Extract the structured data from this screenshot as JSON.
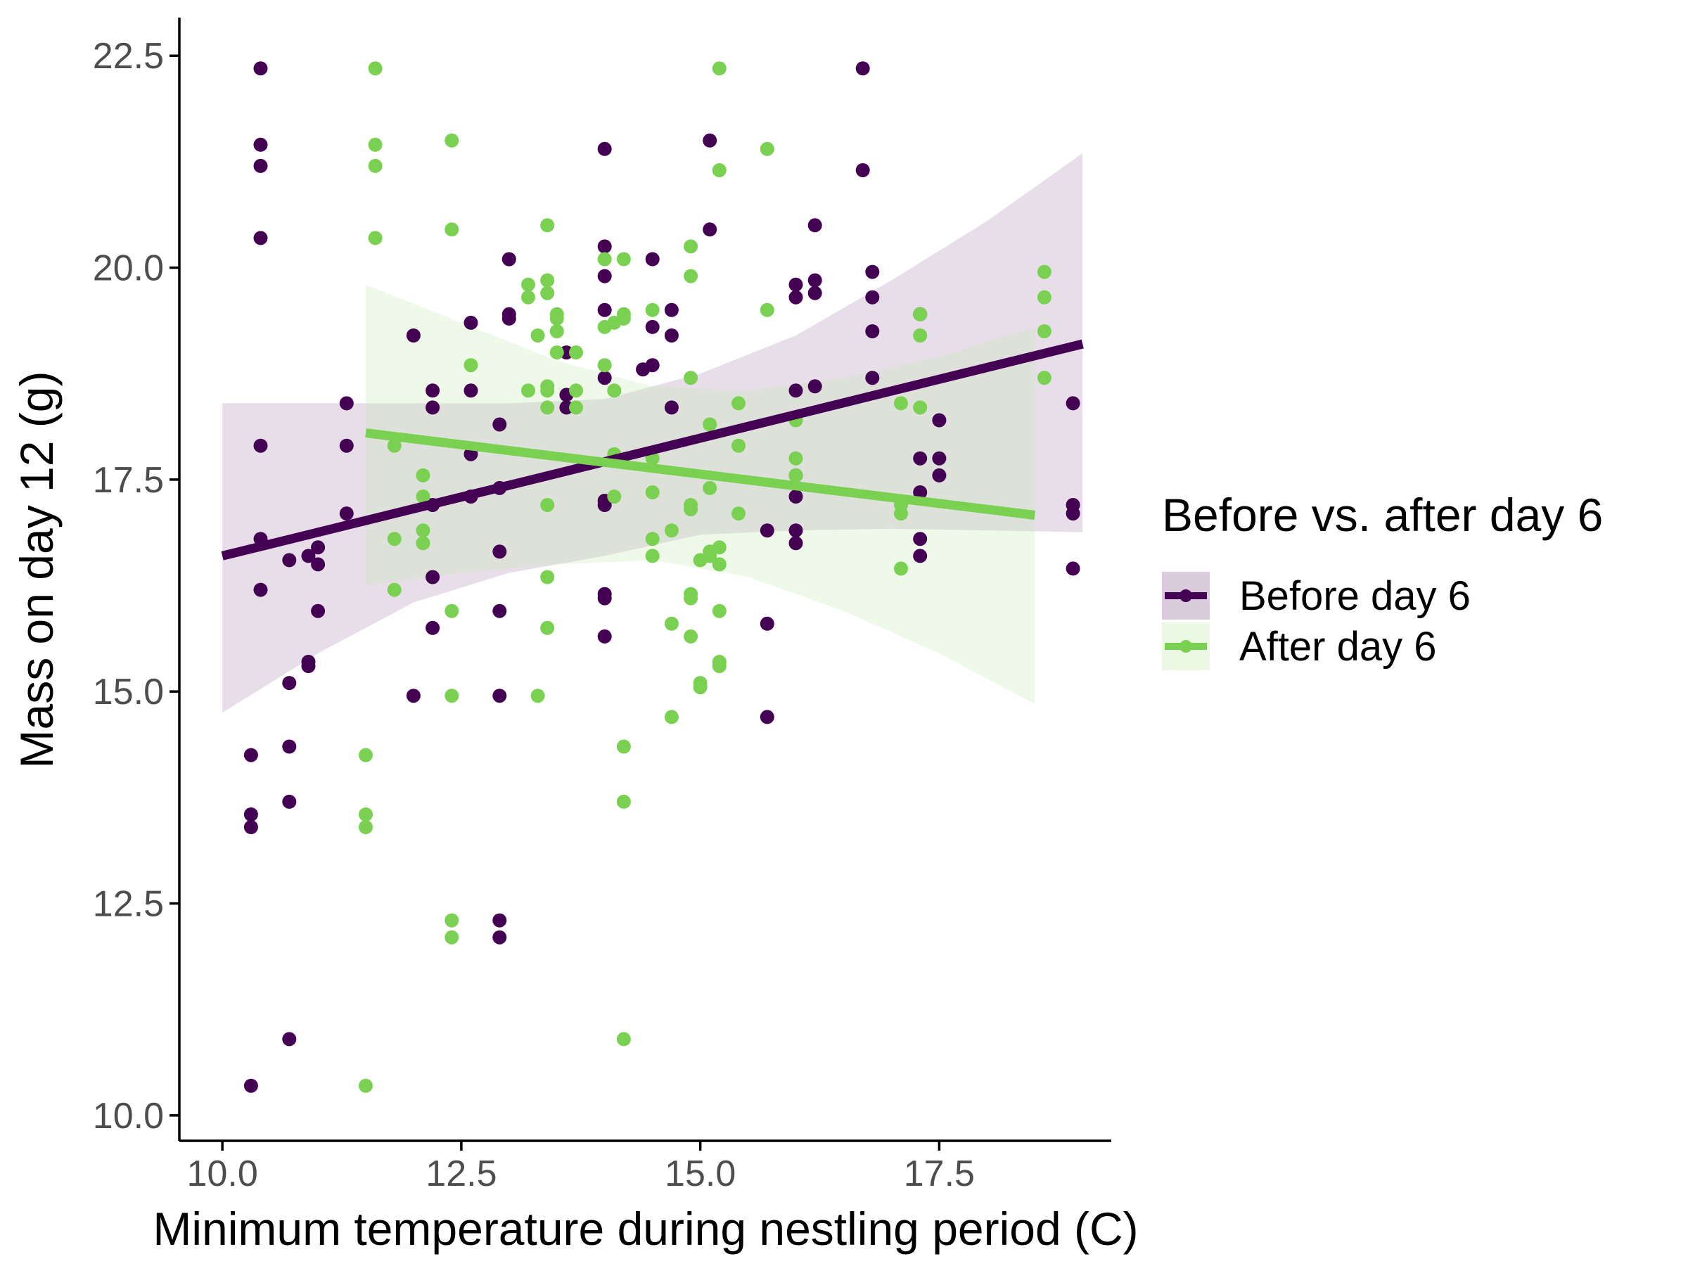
{
  "chart_data": {
    "type": "scatter",
    "title": "",
    "xlabel": "Minimum temperature during nestling period (C)",
    "ylabel": "Mass on day 12 (g)",
    "xlim": [
      9.55,
      19.3
    ],
    "ylim": [
      9.7,
      22.95
    ],
    "x_ticks": [
      10.0,
      12.5,
      15.0,
      17.5
    ],
    "x_tick_labels": [
      "10.0",
      "12.5",
      "15.0",
      "17.5"
    ],
    "y_ticks": [
      10.0,
      12.5,
      15.0,
      17.5,
      20.0,
      22.5
    ],
    "y_tick_labels": [
      "10.0",
      "12.5",
      "15.0",
      "17.5",
      "20.0",
      "22.5"
    ],
    "grid": false,
    "legend": {
      "title": "Before vs. after day 6",
      "placement": "right"
    },
    "series": [
      {
        "name": "Before day 6",
        "color": "#440154",
        "band_color": "#440154",
        "fit": {
          "x": [
            10.0,
            19.0
          ],
          "y": [
            16.6,
            19.1
          ]
        },
        "band": {
          "x": [
            10.0,
            11.0,
            12.0,
            13.0,
            14.0,
            15.0,
            16.0,
            17.0,
            18.0,
            19.0
          ],
          "lower": [
            14.75,
            15.45,
            16.05,
            16.4,
            16.6,
            16.85,
            16.9,
            16.92,
            16.9,
            16.88
          ],
          "upper": [
            18.4,
            18.4,
            18.4,
            18.4,
            18.45,
            18.75,
            19.2,
            19.85,
            20.55,
            21.35
          ]
        },
        "points": [
          [
            10.3,
            14.25
          ],
          [
            10.3,
            13.55
          ],
          [
            10.3,
            13.4
          ],
          [
            10.3,
            10.35
          ],
          [
            10.4,
            22.35
          ],
          [
            10.4,
            21.45
          ],
          [
            10.4,
            21.2
          ],
          [
            10.4,
            20.35
          ],
          [
            10.4,
            17.9
          ],
          [
            10.4,
            16.8
          ],
          [
            10.4,
            16.2
          ],
          [
            10.7,
            16.55
          ],
          [
            10.7,
            15.1
          ],
          [
            10.7,
            14.35
          ],
          [
            10.7,
            13.7
          ],
          [
            10.7,
            10.9
          ],
          [
            10.9,
            16.6
          ],
          [
            10.9,
            15.35
          ],
          [
            10.9,
            15.3
          ],
          [
            11.0,
            16.7
          ],
          [
            11.0,
            16.5
          ],
          [
            11.0,
            15.95
          ],
          [
            11.3,
            18.4
          ],
          [
            11.3,
            17.9
          ],
          [
            11.3,
            17.1
          ],
          [
            12.0,
            19.2
          ],
          [
            12.0,
            14.95
          ],
          [
            12.2,
            18.55
          ],
          [
            12.2,
            18.35
          ],
          [
            12.2,
            17.2
          ],
          [
            12.2,
            16.35
          ],
          [
            12.2,
            15.75
          ],
          [
            12.6,
            19.35
          ],
          [
            12.6,
            18.55
          ],
          [
            12.6,
            17.8
          ],
          [
            12.6,
            17.3
          ],
          [
            12.9,
            18.15
          ],
          [
            12.9,
            17.4
          ],
          [
            12.9,
            16.65
          ],
          [
            12.9,
            15.95
          ],
          [
            12.9,
            14.95
          ],
          [
            12.9,
            12.3
          ],
          [
            12.9,
            12.1
          ],
          [
            13.0,
            20.1
          ],
          [
            13.0,
            19.45
          ],
          [
            13.0,
            19.4
          ],
          [
            13.6,
            19.0
          ],
          [
            13.6,
            18.5
          ],
          [
            13.6,
            18.35
          ],
          [
            14.0,
            21.4
          ],
          [
            14.0,
            20.25
          ],
          [
            14.0,
            19.9
          ],
          [
            14.0,
            19.5
          ],
          [
            14.0,
            18.7
          ],
          [
            14.0,
            17.25
          ],
          [
            14.0,
            17.2
          ],
          [
            14.0,
            16.15
          ],
          [
            14.0,
            16.1
          ],
          [
            14.0,
            15.65
          ],
          [
            14.4,
            18.8
          ],
          [
            14.5,
            20.1
          ],
          [
            14.5,
            19.3
          ],
          [
            14.5,
            18.85
          ],
          [
            14.7,
            19.5
          ],
          [
            14.7,
            19.2
          ],
          [
            14.7,
            18.35
          ],
          [
            15.1,
            21.5
          ],
          [
            15.1,
            20.45
          ],
          [
            15.7,
            16.9
          ],
          [
            15.7,
            15.8
          ],
          [
            15.7,
            14.7
          ],
          [
            16.0,
            19.8
          ],
          [
            16.0,
            19.65
          ],
          [
            16.0,
            18.55
          ],
          [
            16.0,
            17.55
          ],
          [
            16.0,
            17.3
          ],
          [
            16.0,
            16.9
          ],
          [
            16.0,
            16.75
          ],
          [
            16.2,
            20.5
          ],
          [
            16.2,
            19.85
          ],
          [
            16.2,
            19.7
          ],
          [
            16.2,
            18.6
          ],
          [
            16.7,
            22.35
          ],
          [
            16.7,
            21.15
          ],
          [
            16.8,
            19.95
          ],
          [
            16.8,
            19.65
          ],
          [
            16.8,
            19.25
          ],
          [
            16.8,
            18.7
          ],
          [
            17.3,
            19.45
          ],
          [
            17.3,
            17.75
          ],
          [
            17.3,
            17.35
          ],
          [
            17.3,
            16.8
          ],
          [
            17.3,
            16.6
          ],
          [
            17.5,
            18.2
          ],
          [
            17.5,
            17.75
          ],
          [
            17.5,
            17.55
          ],
          [
            18.9,
            18.4
          ],
          [
            18.9,
            17.2
          ],
          [
            18.9,
            17.1
          ],
          [
            18.9,
            16.45
          ]
        ]
      },
      {
        "name": "After day 6",
        "color": "#7AD151",
        "band_color": "#c6eab0",
        "fit": {
          "x": [
            11.5,
            18.5
          ],
          "y": [
            18.05,
            17.08
          ]
        },
        "band": {
          "x": [
            11.5,
            12.5,
            13.5,
            14.5,
            15.5,
            16.5,
            17.5,
            18.5
          ],
          "lower": [
            16.25,
            16.4,
            16.5,
            16.55,
            16.35,
            15.95,
            15.45,
            14.85
          ],
          "upper": [
            19.8,
            19.35,
            18.9,
            18.6,
            18.55,
            18.7,
            18.95,
            19.3
          ]
        },
        "points": [
          [
            11.5,
            14.25
          ],
          [
            11.5,
            13.55
          ],
          [
            11.5,
            13.4
          ],
          [
            11.5,
            10.35
          ],
          [
            11.6,
            22.35
          ],
          [
            11.6,
            21.45
          ],
          [
            11.6,
            21.2
          ],
          [
            11.6,
            20.35
          ],
          [
            11.8,
            17.9
          ],
          [
            11.8,
            16.8
          ],
          [
            11.8,
            16.2
          ],
          [
            12.1,
            17.55
          ],
          [
            12.1,
            17.3
          ],
          [
            12.1,
            16.9
          ],
          [
            12.1,
            16.75
          ],
          [
            12.4,
            21.5
          ],
          [
            12.4,
            20.45
          ],
          [
            12.4,
            15.95
          ],
          [
            12.4,
            14.95
          ],
          [
            12.4,
            12.3
          ],
          [
            12.4,
            12.1
          ],
          [
            12.6,
            18.85
          ],
          [
            13.2,
            19.8
          ],
          [
            13.2,
            19.65
          ],
          [
            13.2,
            18.55
          ],
          [
            13.3,
            19.2
          ],
          [
            13.3,
            14.95
          ],
          [
            13.4,
            20.5
          ],
          [
            13.4,
            19.85
          ],
          [
            13.4,
            19.7
          ],
          [
            13.4,
            18.6
          ],
          [
            13.4,
            18.55
          ],
          [
            13.4,
            18.35
          ],
          [
            13.4,
            17.2
          ],
          [
            13.4,
            16.35
          ],
          [
            13.4,
            15.75
          ],
          [
            13.5,
            19.45
          ],
          [
            13.5,
            19.4
          ],
          [
            13.5,
            19.25
          ],
          [
            13.5,
            19.0
          ],
          [
            13.7,
            19.0
          ],
          [
            13.7,
            18.55
          ],
          [
            13.7,
            18.35
          ],
          [
            14.0,
            20.1
          ],
          [
            14.0,
            19.3
          ],
          [
            14.0,
            18.85
          ],
          [
            14.1,
            19.35
          ],
          [
            14.1,
            18.55
          ],
          [
            14.1,
            17.8
          ],
          [
            14.1,
            17.3
          ],
          [
            14.2,
            20.1
          ],
          [
            14.2,
            19.45
          ],
          [
            14.2,
            19.4
          ],
          [
            14.2,
            14.35
          ],
          [
            14.2,
            13.7
          ],
          [
            14.2,
            10.9
          ],
          [
            14.5,
            19.5
          ],
          [
            14.5,
            17.75
          ],
          [
            14.5,
            17.35
          ],
          [
            14.5,
            16.8
          ],
          [
            14.5,
            16.6
          ],
          [
            14.7,
            16.9
          ],
          [
            14.7,
            15.8
          ],
          [
            14.7,
            14.7
          ],
          [
            14.9,
            20.25
          ],
          [
            14.9,
            19.9
          ],
          [
            14.9,
            18.7
          ],
          [
            14.9,
            17.2
          ],
          [
            14.9,
            17.15
          ],
          [
            14.9,
            16.15
          ],
          [
            14.9,
            16.1
          ],
          [
            14.9,
            15.65
          ],
          [
            15.0,
            16.55
          ],
          [
            15.0,
            15.1
          ],
          [
            15.0,
            15.05
          ],
          [
            15.1,
            18.15
          ],
          [
            15.1,
            17.4
          ],
          [
            15.1,
            16.65
          ],
          [
            15.1,
            16.6
          ],
          [
            15.2,
            22.35
          ],
          [
            15.2,
            21.15
          ],
          [
            15.2,
            16.7
          ],
          [
            15.2,
            16.5
          ],
          [
            15.2,
            15.95
          ],
          [
            15.2,
            15.35
          ],
          [
            15.2,
            15.3
          ],
          [
            15.4,
            18.4
          ],
          [
            15.4,
            17.9
          ],
          [
            15.4,
            17.1
          ],
          [
            15.7,
            21.4
          ],
          [
            15.7,
            19.5
          ],
          [
            16.0,
            18.2
          ],
          [
            16.0,
            17.75
          ],
          [
            16.0,
            17.55
          ],
          [
            17.1,
            18.4
          ],
          [
            17.1,
            17.2
          ],
          [
            17.1,
            17.1
          ],
          [
            17.1,
            16.45
          ],
          [
            17.3,
            19.45
          ],
          [
            17.3,
            19.2
          ],
          [
            17.3,
            18.35
          ],
          [
            18.6,
            19.95
          ],
          [
            18.6,
            19.65
          ],
          [
            18.6,
            19.25
          ],
          [
            18.6,
            18.7
          ]
        ]
      }
    ]
  }
}
